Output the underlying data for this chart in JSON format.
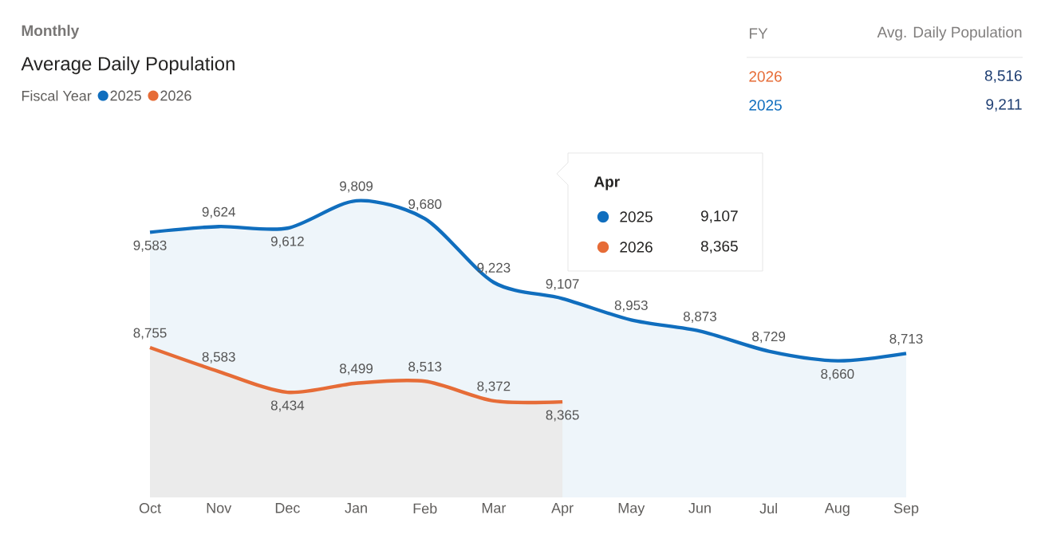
{
  "chart_data": {
    "type": "area",
    "subtitle": "Monthly",
    "title": "Average Daily Population",
    "legend_title": "Fiscal Year",
    "legend": "top left",
    "tick_labels": "x",
    "categories": [
      "Oct",
      "Nov",
      "Dec",
      "Jan",
      "Feb",
      "Mar",
      "Apr",
      "May",
      "Jun",
      "Jul",
      "Aug",
      "Sep"
    ],
    "series": [
      {
        "name": "2025",
        "color": "#106ebe",
        "values": [
          9583,
          9624,
          9612,
          9809,
          9680,
          9223,
          9107,
          8953,
          8873,
          8729,
          8660,
          8713
        ],
        "value_labels": [
          "9,583",
          "9,624",
          "9,612",
          "9,809",
          "9,680",
          "9,223",
          "9,107",
          "8,953",
          "8,873",
          "8,729",
          "8,660",
          "8,713"
        ]
      },
      {
        "name": "2026",
        "color": "#e66c37",
        "values": [
          8755,
          8583,
          8434,
          8499,
          8513,
          8372,
          8365,
          null,
          null,
          null,
          null,
          null
        ],
        "value_labels": [
          "8,755",
          "8,583",
          "8,434",
          "8,499",
          "8,513",
          "8,372",
          "8,365",
          null,
          null,
          null,
          null,
          null
        ]
      }
    ],
    "annotations": [
      "FY",
      "Avg. Daily Population",
      "2026",
      "8,516",
      "2025",
      "9,211",
      "Apr",
      "2025",
      "9,107",
      "2026",
      "8,365"
    ]
  }
}
